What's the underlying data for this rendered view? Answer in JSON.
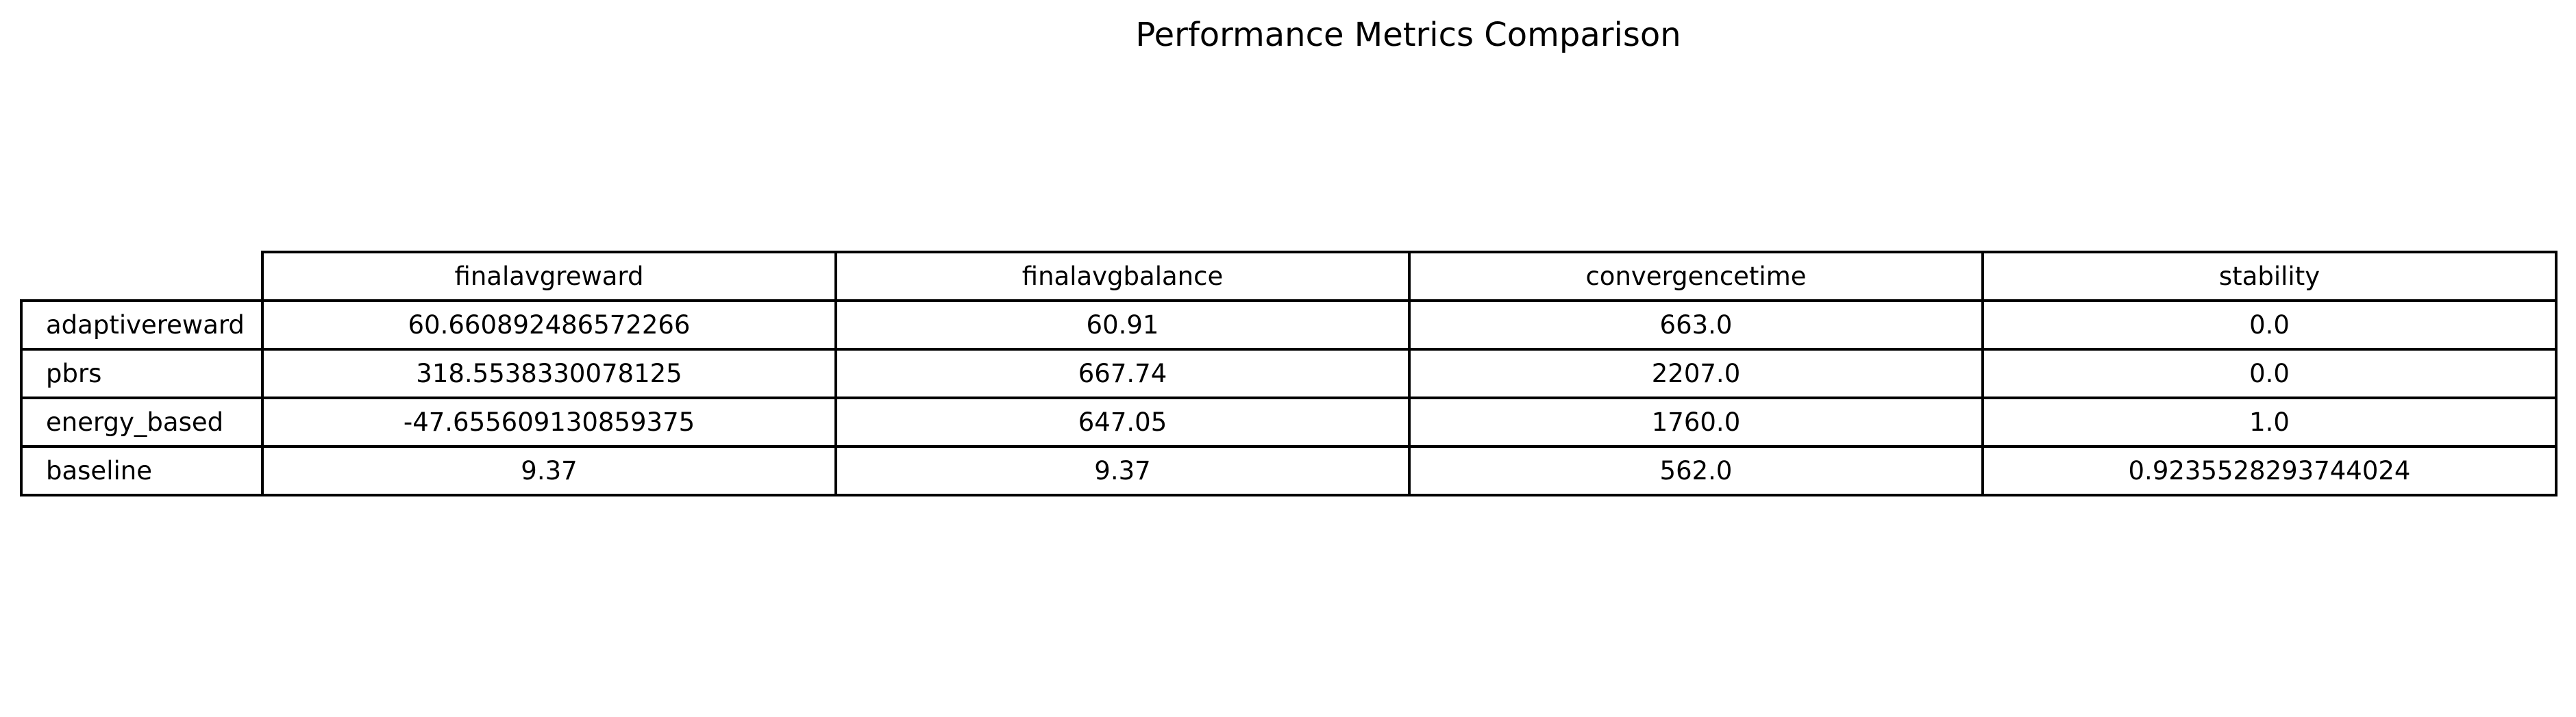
{
  "chart_data": {
    "type": "table",
    "title": "Performance Metrics Comparison",
    "columns": [
      "finalavgreward",
      "finalavgbalance",
      "convergencetime",
      "stability"
    ],
    "rows": [
      {
        "label": "adaptivereward",
        "cells": [
          "60.660892486572266",
          "60.91",
          "663.0",
          "0.0"
        ]
      },
      {
        "label": "pbrs",
        "cells": [
          "318.5538330078125",
          "667.74",
          "2207.0",
          "0.0"
        ]
      },
      {
        "label": "energy_based",
        "cells": [
          "-47.655609130859375",
          "647.05",
          "1760.0",
          "1.0"
        ]
      },
      {
        "label": "baseline",
        "cells": [
          "9.37",
          "9.37",
          "562.0",
          "0.9235528293744024"
        ]
      }
    ]
  }
}
